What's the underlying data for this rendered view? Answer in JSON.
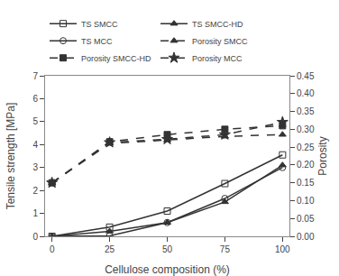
{
  "chart_data": {
    "type": "line",
    "x": [
      0,
      25,
      50,
      75,
      100
    ],
    "xlabel": "Cellulose composition (%)",
    "ylabel": "Tensile strength [MPa]",
    "y2label": "Porosity",
    "xlim": [
      -3,
      103
    ],
    "xticks": [
      0,
      25,
      50,
      75,
      100
    ],
    "ylim": [
      0,
      7
    ],
    "yticks": [
      0,
      1,
      2,
      3,
      4,
      5,
      6,
      7
    ],
    "y2lim": [
      0,
      0.45
    ],
    "y2ticks": [
      {
        "value": 0,
        "label": "0.00"
      },
      0.05,
      {
        "value": 0.1,
        "label": "0.10"
      },
      0.15,
      {
        "value": 0.2,
        "label": "0.20"
      },
      0.25,
      {
        "value": 0.3,
        "label": "0.30"
      },
      0.35,
      {
        "value": 0.4,
        "label": "0.40"
      },
      0.45
    ],
    "grid": false,
    "legend": "upper left",
    "series": [
      {
        "name": "TS SMCC",
        "color": "#333333",
        "marker": "square-open",
        "line_style": "solid",
        "values": [
          0.0,
          0.4,
          1.1,
          2.3,
          3.55
        ]
      },
      {
        "name": "TS SMCC-HD",
        "color": "#333333",
        "marker": "triangle-up",
        "line_style": "solid",
        "values": [
          0.0,
          0.22,
          0.6,
          1.5,
          3.1
        ]
      },
      {
        "name": "TS MCC",
        "color": "#333333",
        "marker": "circle-open",
        "line_style": "solid",
        "values": [
          0.0,
          0.02,
          0.6,
          1.65,
          3.0
        ]
      },
      {
        "name": "Porosity SMCC",
        "color": "#333333",
        "marker": "triangle-up",
        "line_style": "dashed",
        "axis": "y2",
        "values": [
          0.15,
          0.26,
          0.27,
          0.28,
          0.285
        ]
      },
      {
        "name": "Porosity SMCC-HD",
        "color": "#333333",
        "marker": "square",
        "line_style": "dashed",
        "axis": "y2",
        "values": [
          0.15,
          0.265,
          0.285,
          0.3,
          0.31
        ]
      },
      {
        "name": "Porosity MCC",
        "color": "#333333",
        "marker": "star",
        "line_style": "dashed",
        "axis": "y2",
        "values": [
          0.15,
          0.263,
          0.272,
          0.285,
          0.32
        ]
      }
    ]
  }
}
